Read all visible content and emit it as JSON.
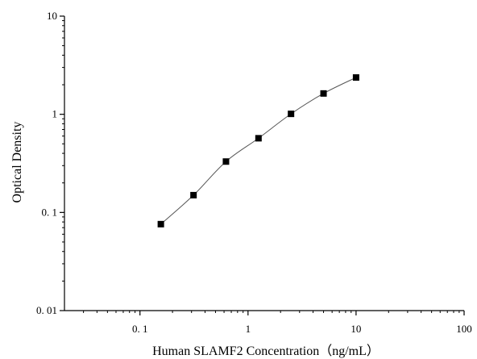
{
  "chart_data": {
    "type": "scatter",
    "title": "",
    "xlabel": "Human SLAMF2 Concentration（ng/mL）",
    "ylabel": "Optical Density",
    "x_scale": "log",
    "y_scale": "log",
    "xlim": [
      0.02,
      100
    ],
    "ylim": [
      0.01,
      10
    ],
    "grid": false,
    "legend": "none",
    "x_ticks": [
      {
        "value": 0.1,
        "label": "0. 1"
      },
      {
        "value": 1,
        "label": "1"
      },
      {
        "value": 10,
        "label": "10"
      },
      {
        "value": 100,
        "label": "100"
      }
    ],
    "y_ticks": [
      {
        "value": 0.01,
        "label": "0. 01"
      },
      {
        "value": 0.1,
        "label": "0. 1"
      },
      {
        "value": 1,
        "label": "1"
      },
      {
        "value": 10,
        "label": "10"
      }
    ],
    "series": [
      {
        "x": [
          0.156,
          0.313,
          0.625,
          1.25,
          2.5,
          5,
          10
        ],
        "y": [
          0.076,
          0.15,
          0.33,
          0.57,
          1.01,
          1.63,
          2.37
        ],
        "marker": "square",
        "color": "#000000",
        "line": "smooth-fit"
      }
    ]
  }
}
